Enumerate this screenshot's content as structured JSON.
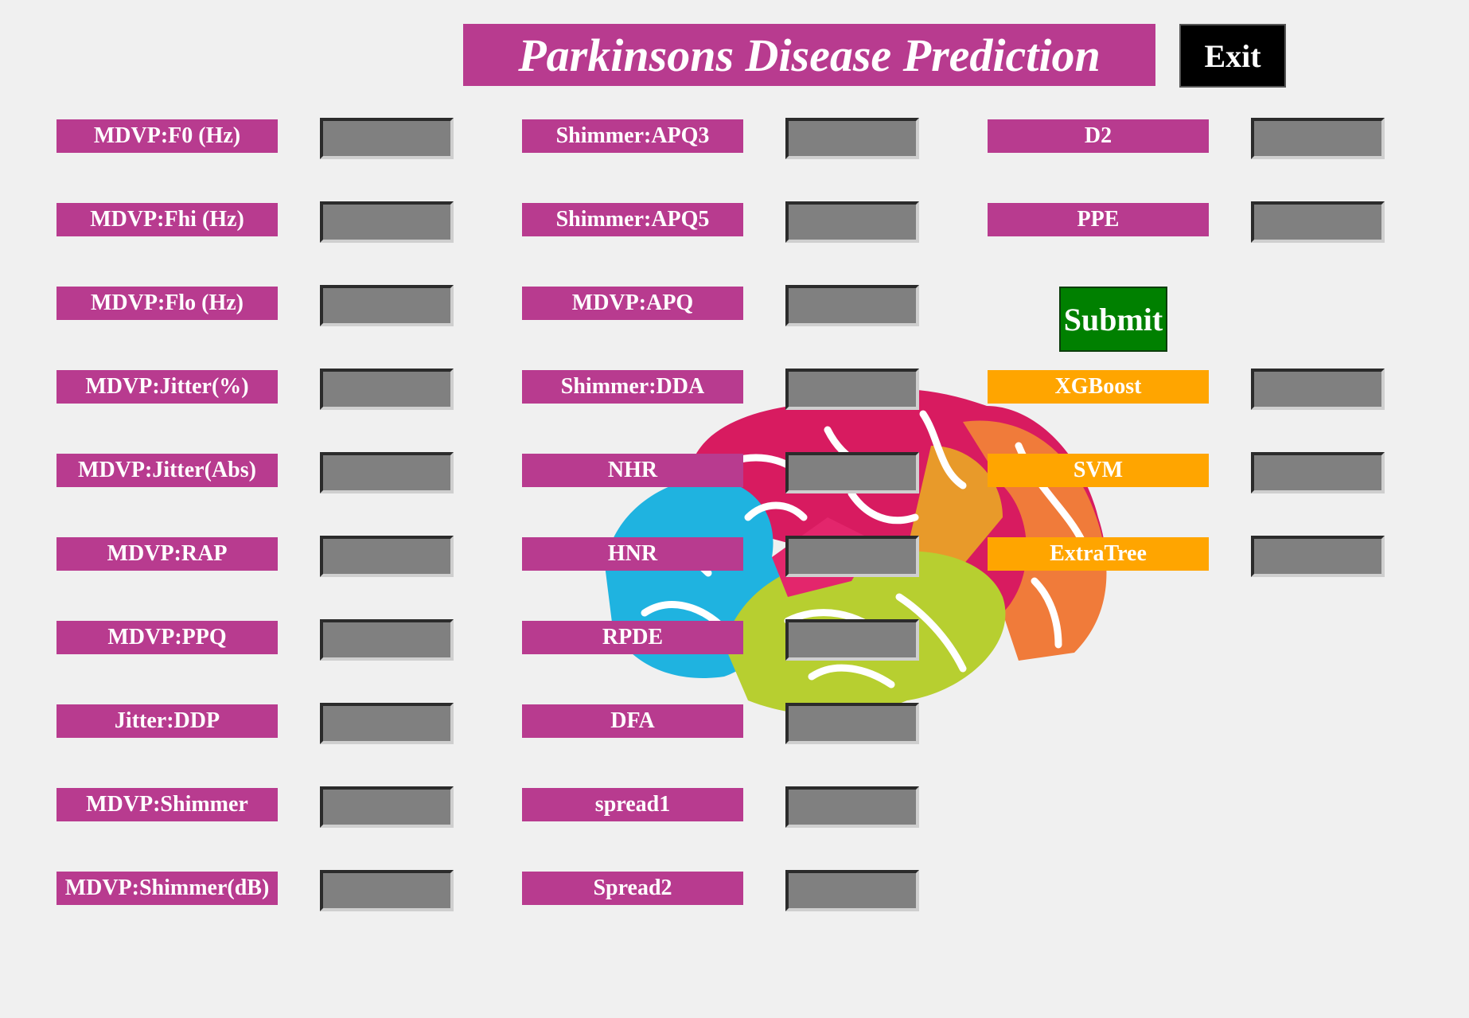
{
  "header": {
    "title": "Parkinsons Disease Prediction",
    "exit_label": "Exit"
  },
  "features_col1": [
    "MDVP:F0 (Hz)",
    "MDVP:Fhi (Hz)",
    "MDVP:Flo (Hz)",
    "MDVP:Jitter(%)",
    "MDVP:Jitter(Abs)",
    "MDVP:RAP",
    "MDVP:PPQ",
    "Jitter:DDP",
    "MDVP:Shimmer",
    "MDVP:Shimmer(dB)"
  ],
  "features_col2": [
    "Shimmer:APQ3",
    "Shimmer:APQ5",
    "MDVP:APQ",
    "Shimmer:DDA",
    "NHR",
    "HNR",
    "RPDE",
    "DFA",
    "spread1",
    "Spread2"
  ],
  "features_col3": [
    "D2",
    "PPE"
  ],
  "submit_label": "Submit",
  "models": [
    "XGBoost",
    "SVM",
    "ExtraTree"
  ],
  "colors": {
    "label_bg": "#b83b8f",
    "model_bg": "#ffa500",
    "submit_bg": "#008000",
    "input_bg": "#808080"
  }
}
